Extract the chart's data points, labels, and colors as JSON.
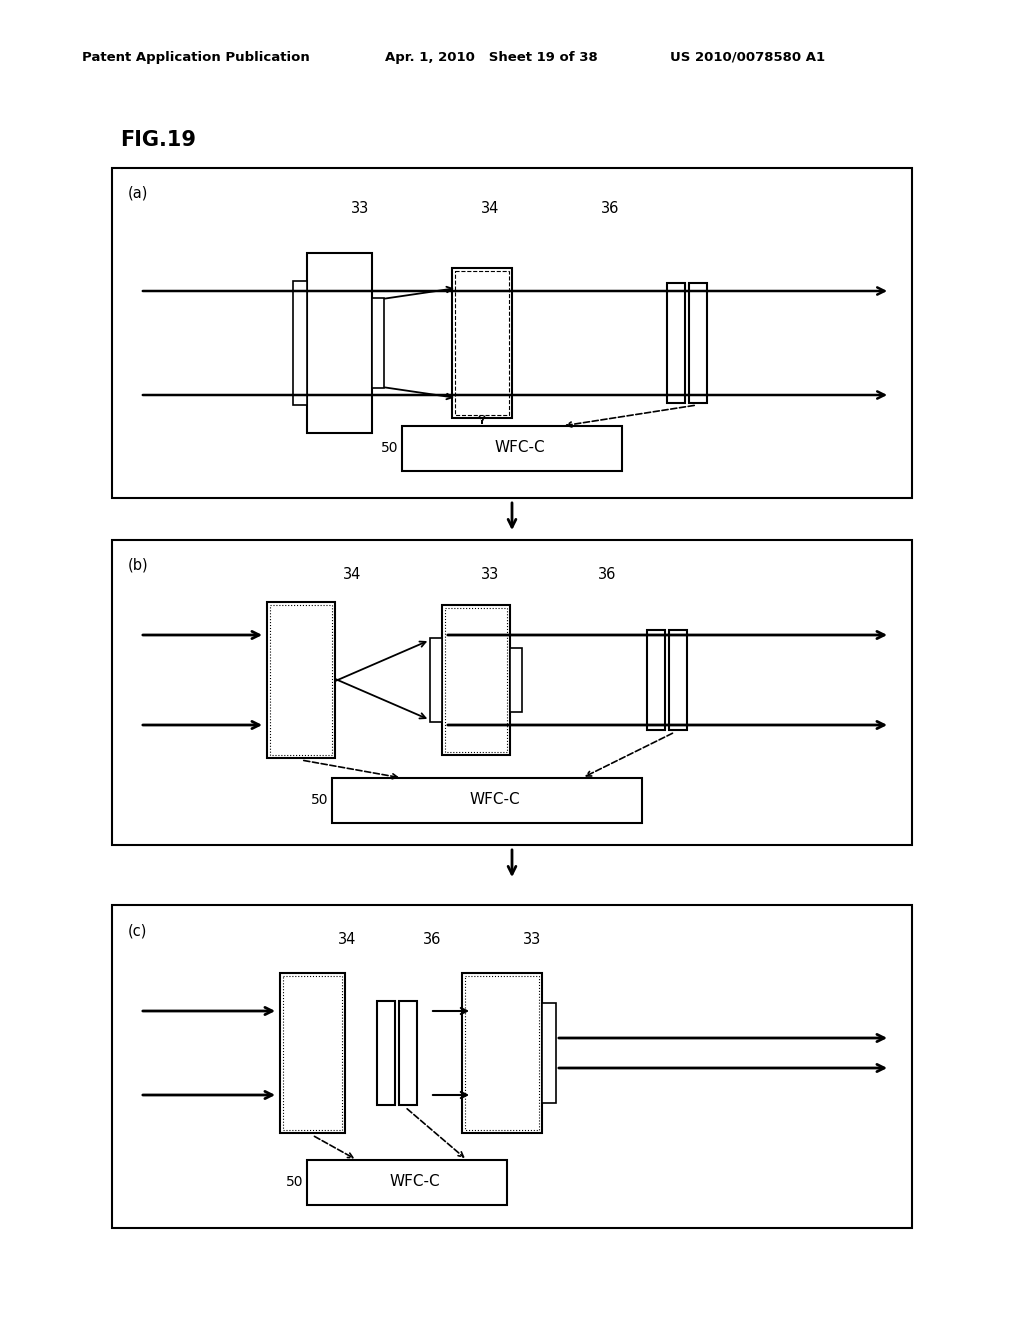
{
  "header_left": "Patent Application Publication",
  "header_mid": "Apr. 1, 2010   Sheet 19 of 38",
  "header_right": "US 2010/0078580 A1",
  "fig_label": "FIG.19",
  "bg_color": "#ffffff"
}
